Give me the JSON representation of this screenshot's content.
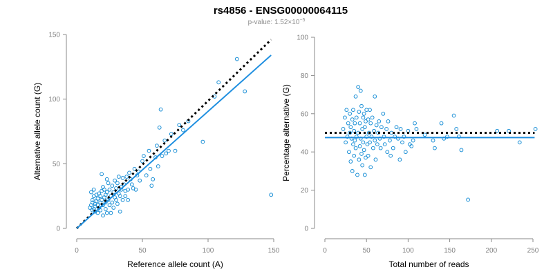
{
  "title": "rs4856 - ENSG00000064115",
  "subtitle": {
    "prefix": "p-value: 1.52×10",
    "exponent": "−5"
  },
  "colors": {
    "points": "#1a8fd6",
    "fit": "#1f8fe0",
    "reference": "#000000"
  },
  "chart_data": [
    {
      "type": "scatter",
      "xlabel": "Reference allele count (A)",
      "ylabel": "Alternative allele count (G)",
      "xlim": [
        0,
        150
      ],
      "ylim": [
        0,
        150
      ],
      "xticks": [
        0,
        50,
        100,
        150
      ],
      "yticks": [
        0,
        50,
        100,
        150
      ],
      "fit_line": {
        "from": [
          0,
          0
        ],
        "to": [
          148,
          134
        ]
      },
      "reference_line": {
        "from": [
          0,
          0
        ],
        "to": [
          148,
          146
        ],
        "style": "dotted"
      },
      "points": [
        [
          10,
          16
        ],
        [
          11,
          28
        ],
        [
          11,
          18
        ],
        [
          12,
          14
        ],
        [
          12,
          20
        ],
        [
          12,
          22
        ],
        [
          13,
          15
        ],
        [
          13,
          25
        ],
        [
          13,
          30
        ],
        [
          14,
          17
        ],
        [
          14,
          19
        ],
        [
          14,
          13
        ],
        [
          15,
          21
        ],
        [
          15,
          26
        ],
        [
          16,
          18
        ],
        [
          16,
          23
        ],
        [
          16,
          12
        ],
        [
          17,
          16
        ],
        [
          17,
          27
        ],
        [
          18,
          20
        ],
        [
          18,
          25
        ],
        [
          18,
          14
        ],
        [
          19,
          22
        ],
        [
          19,
          29
        ],
        [
          19,
          42
        ],
        [
          20,
          18
        ],
        [
          20,
          10
        ],
        [
          20,
          32
        ],
        [
          21,
          24
        ],
        [
          21,
          30
        ],
        [
          22,
          15
        ],
        [
          22,
          26
        ],
        [
          22,
          20
        ],
        [
          23,
          12
        ],
        [
          23,
          38
        ],
        [
          23,
          28
        ],
        [
          24,
          22
        ],
        [
          24,
          35
        ],
        [
          25,
          18
        ],
        [
          25,
          30
        ],
        [
          26,
          25
        ],
        [
          26,
          12
        ],
        [
          27,
          33
        ],
        [
          27,
          20
        ],
        [
          28,
          28
        ],
        [
          28,
          16
        ],
        [
          29,
          24
        ],
        [
          29,
          37
        ],
        [
          30,
          31
        ],
        [
          30,
          22
        ],
        [
          31,
          19
        ],
        [
          31,
          35
        ],
        [
          32,
          27
        ],
        [
          32,
          40
        ],
        [
          33,
          25
        ],
        [
          33,
          13
        ],
        [
          34,
          32
        ],
        [
          34,
          30
        ],
        [
          35,
          39
        ],
        [
          35,
          22
        ],
        [
          36,
          34
        ],
        [
          37,
          29
        ],
        [
          37,
          25
        ],
        [
          38,
          40
        ],
        [
          39,
          30
        ],
        [
          39,
          22
        ],
        [
          40,
          43
        ],
        [
          41,
          38
        ],
        [
          42,
          34
        ],
        [
          43,
          31
        ],
        [
          44,
          46
        ],
        [
          45,
          30
        ],
        [
          46,
          41
        ],
        [
          47,
          44
        ],
        [
          48,
          37
        ],
        [
          50,
          52
        ],
        [
          51,
          56
        ],
        [
          53,
          41
        ],
        [
          55,
          60
        ],
        [
          56,
          46
        ],
        [
          57,
          33
        ],
        [
          58,
          38
        ],
        [
          60,
          55
        ],
        [
          61,
          64
        ],
        [
          62,
          48
        ],
        [
          63,
          78
        ],
        [
          64,
          92
        ],
        [
          65,
          56
        ],
        [
          67,
          68
        ],
        [
          68,
          58
        ],
        [
          70,
          60
        ],
        [
          72,
          73
        ],
        [
          75,
          60
        ],
        [
          78,
          80
        ],
        [
          81,
          76
        ],
        [
          85,
          83
        ],
        [
          96,
          67
        ],
        [
          105,
          102
        ],
        [
          108,
          113
        ],
        [
          122,
          131
        ],
        [
          128,
          106
        ],
        [
          148,
          26
        ]
      ]
    },
    {
      "type": "scatter",
      "xlabel": "Total number of reads",
      "ylabel": "Percentage alternative (G)",
      "xlim": [
        0,
        250
      ],
      "ylim": [
        0,
        100
      ],
      "xticks": [
        0,
        50,
        100,
        150,
        200,
        250
      ],
      "yticks": [
        0,
        20,
        40,
        60,
        80,
        100
      ],
      "fit_line": {
        "y": 47.5
      },
      "reference_line": {
        "y": 50,
        "style": "dotted"
      },
      "points": [
        [
          22,
          52
        ],
        [
          24,
          58
        ],
        [
          25,
          45
        ],
        [
          26,
          62
        ],
        [
          27,
          48
        ],
        [
          28,
          55
        ],
        [
          29,
          40
        ],
        [
          30,
          60
        ],
        [
          30,
          50
        ],
        [
          31,
          35
        ],
        [
          31,
          53
        ],
        [
          32,
          47
        ],
        [
          33,
          57
        ],
        [
          33,
          30
        ],
        [
          34,
          44
        ],
        [
          34,
          62
        ],
        [
          35,
          38
        ],
        [
          35,
          51
        ],
        [
          36,
          55
        ],
        [
          36,
          46
        ],
        [
          37,
          69
        ],
        [
          37,
          42
        ],
        [
          38,
          58
        ],
        [
          38,
          48
        ],
        [
          39,
          28
        ],
        [
          40,
          74
        ],
        [
          40,
          50
        ],
        [
          41,
          36
        ],
        [
          41,
          61
        ],
        [
          42,
          43
        ],
        [
          42,
          55
        ],
        [
          43,
          47
        ],
        [
          43,
          72
        ],
        [
          44,
          39
        ],
        [
          44,
          64
        ],
        [
          45,
          52
        ],
        [
          45,
          33
        ],
        [
          46,
          58
        ],
        [
          46,
          45
        ],
        [
          47,
          60
        ],
        [
          47,
          41
        ],
        [
          48,
          28
        ],
        [
          48,
          53
        ],
        [
          49,
          37
        ],
        [
          49,
          56
        ],
        [
          50,
          48
        ],
        [
          50,
          62
        ],
        [
          51,
          44
        ],
        [
          52,
          57
        ],
        [
          52,
          38
        ],
        [
          53,
          50
        ],
        [
          54,
          62
        ],
        [
          54,
          45
        ],
        [
          55,
          55
        ],
        [
          55,
          32
        ],
        [
          56,
          48
        ],
        [
          57,
          58
        ],
        [
          58,
          42
        ],
        [
          59,
          51
        ],
        [
          60,
          46
        ],
        [
          60,
          69
        ],
        [
          61,
          36
        ],
        [
          62,
          54
        ],
        [
          63,
          44
        ],
        [
          64,
          50
        ],
        [
          65,
          56
        ],
        [
          66,
          47
        ],
        [
          67,
          42
        ],
        [
          68,
          53
        ],
        [
          70,
          60
        ],
        [
          71,
          48
        ],
        [
          72,
          44
        ],
        [
          74,
          52
        ],
        [
          75,
          40
        ],
        [
          76,
          56
        ],
        [
          78,
          46
        ],
        [
          79,
          38
        ],
        [
          80,
          50
        ],
        [
          82,
          42
        ],
        [
          84,
          48
        ],
        [
          86,
          53
        ],
        [
          88,
          47
        ],
        [
          90,
          36
        ],
        [
          91,
          52
        ],
        [
          93,
          45
        ],
        [
          95,
          48
        ],
        [
          97,
          40
        ],
        [
          100,
          51
        ],
        [
          102,
          44
        ],
        [
          104,
          43
        ],
        [
          106,
          46
        ],
        [
          108,
          55
        ],
        [
          110,
          52
        ],
        [
          120,
          49
        ],
        [
          130,
          46
        ],
        [
          132,
          42
        ],
        [
          140,
          55
        ],
        [
          143,
          47
        ],
        [
          147,
          48
        ],
        [
          155,
          59
        ],
        [
          158,
          52
        ],
        [
          161,
          48
        ],
        [
          164,
          41
        ],
        [
          172,
          15
        ],
        [
          207,
          51
        ],
        [
          221,
          51
        ],
        [
          234,
          45
        ],
        [
          253,
          52
        ]
      ]
    }
  ]
}
